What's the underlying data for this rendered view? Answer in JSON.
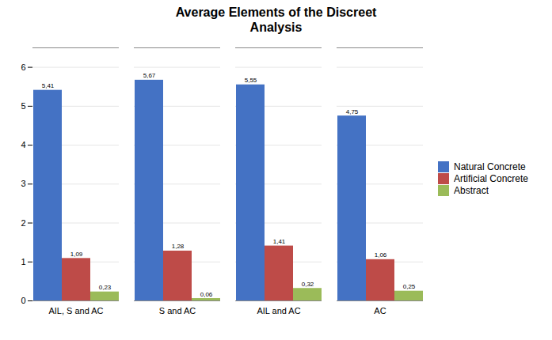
{
  "chart_data": {
    "type": "bar",
    "title": "Average Elements of the Discreet\nAnalysis",
    "categories": [
      "AIL, S and AC",
      "S and AC",
      "AIL and AC",
      "AC"
    ],
    "series": [
      {
        "name": "Natural Concrete",
        "color": "#4472C4",
        "values": [
          5.41,
          5.67,
          5.55,
          4.75
        ],
        "value_labels": [
          "5,41",
          "5,67",
          "5,55",
          "4,75"
        ]
      },
      {
        "name": "Artificial Concrete",
        "color": "#BE4B48",
        "values": [
          1.09,
          1.28,
          1.41,
          1.06
        ],
        "value_labels": [
          "1,09",
          "1,28",
          "1,41",
          "1,06"
        ]
      },
      {
        "name": "Abstract",
        "color": "#9BBB59",
        "values": [
          0.23,
          0.06,
          0.32,
          0.25
        ],
        "value_labels": [
          "0,23",
          "0,06",
          "0,32",
          "0,25"
        ]
      }
    ],
    "ylim": [
      0,
      6.5
    ],
    "yticks": [
      0,
      1,
      2,
      3,
      4,
      5,
      6
    ],
    "grid": true,
    "legend": "right",
    "data_labels": true
  }
}
